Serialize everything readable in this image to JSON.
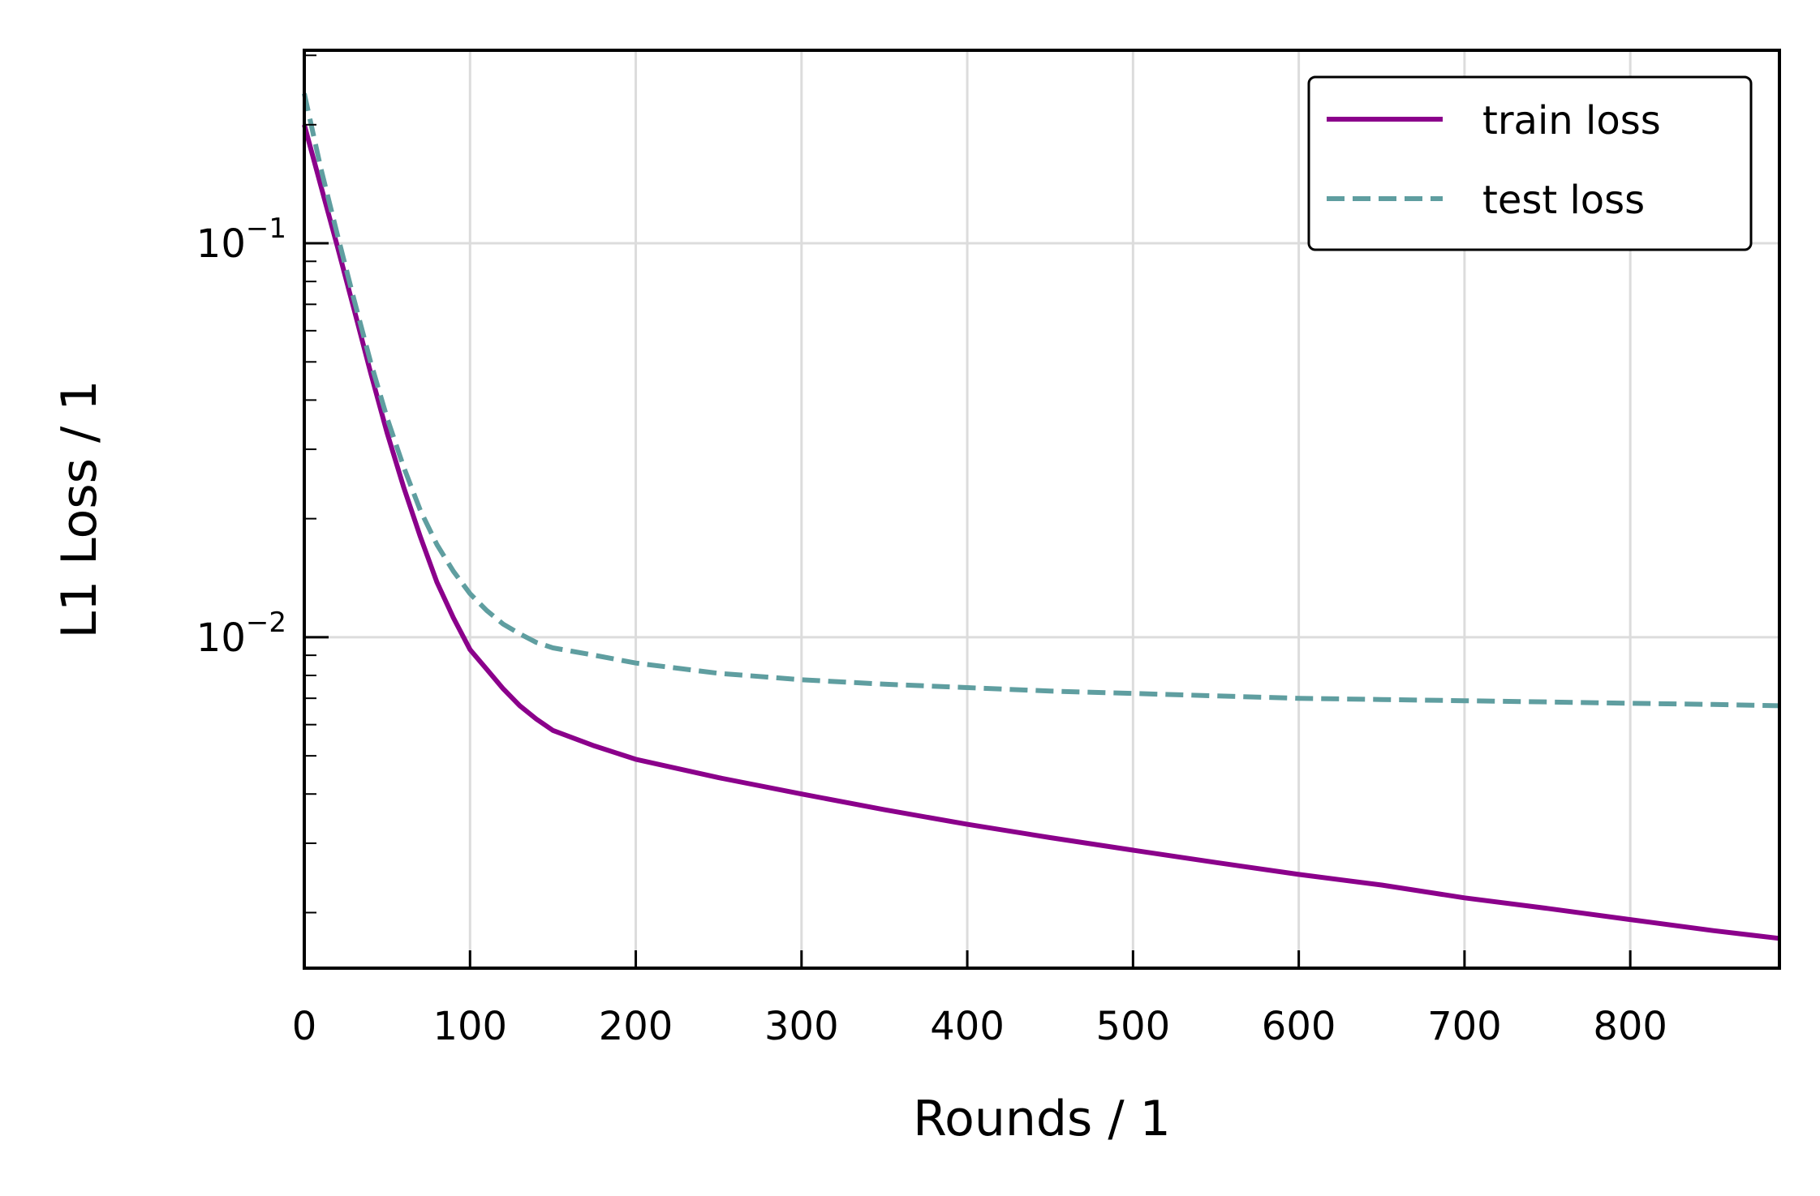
{
  "chart_data": {
    "type": "line",
    "xlabel": "Rounds / 1",
    "ylabel": "L1 Loss / 1",
    "xlim": [
      0,
      890
    ],
    "ylim_log10": [
      -2.84,
      -0.51
    ],
    "y_scale": "log",
    "grid": true,
    "legend_position": "top-right",
    "x_ticks": [
      {
        "value": 0,
        "label": "0"
      },
      {
        "value": 100,
        "label": "100"
      },
      {
        "value": 200,
        "label": "200"
      },
      {
        "value": 300,
        "label": "300"
      },
      {
        "value": 400,
        "label": "400"
      },
      {
        "value": 500,
        "label": "500"
      },
      {
        "value": 600,
        "label": "600"
      },
      {
        "value": 700,
        "label": "700"
      },
      {
        "value": 800,
        "label": "800"
      }
    ],
    "y_ticks": [
      {
        "value": 0.1,
        "base": "10",
        "exp": "−1"
      },
      {
        "value": 0.01,
        "base": "10",
        "exp": "−2"
      }
    ],
    "series": [
      {
        "name": "train loss",
        "color": "#8B008B",
        "dash": "solid",
        "x": [
          0,
          10,
          20,
          30,
          40,
          50,
          60,
          70,
          80,
          90,
          100,
          110,
          120,
          130,
          140,
          150,
          175,
          200,
          250,
          300,
          350,
          400,
          450,
          500,
          550,
          600,
          650,
          700,
          750,
          800,
          850,
          890
        ],
        "y": [
          0.2,
          0.14,
          0.098,
          0.068,
          0.047,
          0.033,
          0.024,
          0.018,
          0.0138,
          0.0112,
          0.0093,
          0.0083,
          0.0074,
          0.0067,
          0.0062,
          0.0058,
          0.0053,
          0.0049,
          0.0044,
          0.004,
          0.00365,
          0.00335,
          0.0031,
          0.00288,
          0.00268,
          0.0025,
          0.00235,
          0.00218,
          0.00205,
          0.00192,
          0.0018,
          0.00172
        ]
      },
      {
        "name": "test loss",
        "color": "#5F9EA0",
        "dash": "dashed",
        "x": [
          0,
          10,
          20,
          30,
          40,
          50,
          60,
          70,
          80,
          90,
          100,
          110,
          120,
          130,
          140,
          150,
          175,
          200,
          250,
          300,
          350,
          400,
          450,
          500,
          550,
          600,
          650,
          700,
          750,
          800,
          850,
          890
        ],
        "y": [
          0.24,
          0.155,
          0.105,
          0.072,
          0.05,
          0.036,
          0.027,
          0.021,
          0.0172,
          0.0147,
          0.0129,
          0.0117,
          0.0108,
          0.0102,
          0.0097,
          0.0094,
          0.009,
          0.0086,
          0.0081,
          0.0078,
          0.0076,
          0.00745,
          0.0073,
          0.0072,
          0.0071,
          0.007,
          0.00695,
          0.0069,
          0.00685,
          0.0068,
          0.00675,
          0.0067
        ]
      }
    ]
  }
}
